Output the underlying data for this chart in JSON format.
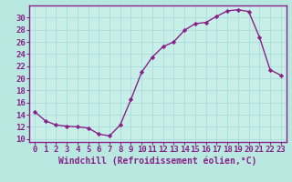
{
  "x": [
    0,
    1,
    2,
    3,
    4,
    5,
    6,
    7,
    8,
    9,
    10,
    11,
    12,
    13,
    14,
    15,
    16,
    17,
    18,
    19,
    20,
    21,
    22,
    23
  ],
  "y": [
    14.5,
    13.0,
    12.3,
    12.1,
    12.0,
    11.8,
    10.8,
    10.5,
    12.3,
    16.5,
    21.0,
    23.5,
    25.2,
    26.0,
    27.9,
    29.0,
    29.2,
    30.2,
    31.1,
    31.3,
    31.0,
    26.8,
    21.4,
    20.5
  ],
  "line_color": "#882288",
  "marker": "D",
  "marker_size": 2.2,
  "bg_color": "#b8e8e0",
  "plot_bg_color": "#c8eee8",
  "grid_color": "#aadddd",
  "spine_color": "#882288",
  "tick_color": "#882288",
  "label_color": "#882288",
  "xlabel": "Windchill (Refroidissement éolien,°C)",
  "xlim": [
    -0.5,
    23.5
  ],
  "ylim": [
    9.5,
    32
  ],
  "yticks": [
    10,
    12,
    14,
    16,
    18,
    20,
    22,
    24,
    26,
    28,
    30
  ],
  "xticks": [
    0,
    1,
    2,
    3,
    4,
    5,
    6,
    7,
    8,
    9,
    10,
    11,
    12,
    13,
    14,
    15,
    16,
    17,
    18,
    19,
    20,
    21,
    22,
    23
  ],
  "tick_fontsize": 6.5,
  "xlabel_fontsize": 7.0,
  "linewidth": 1.0
}
